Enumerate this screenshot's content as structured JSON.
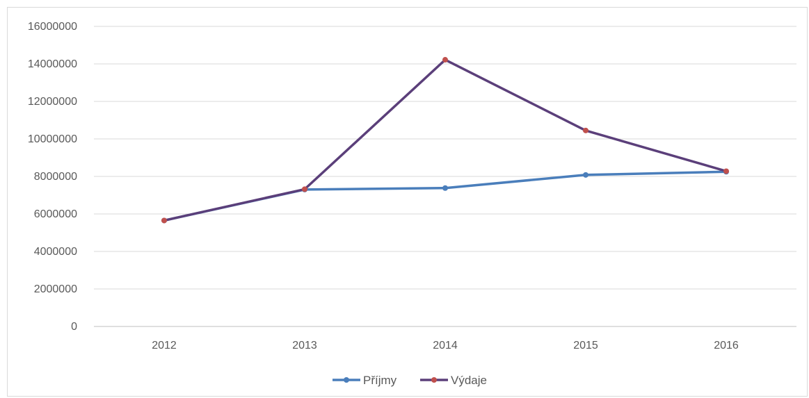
{
  "chart_data": {
    "type": "line",
    "categories": [
      "2012",
      "2013",
      "2014",
      "2015",
      "2016"
    ],
    "series": [
      {
        "name": "Příjmy",
        "values": [
          5650000,
          7300000,
          7380000,
          8080000,
          8250000
        ],
        "line_color": "#4a7ebb",
        "marker_color": "#4a7ebb"
      },
      {
        "name": "Výdaje",
        "values": [
          5650000,
          7320000,
          14220000,
          10450000,
          8280000
        ],
        "line_color": "#5b3f7a",
        "marker_color": "#c0504d"
      }
    ],
    "yticks": [
      "0",
      "2000000",
      "4000000",
      "6000000",
      "8000000",
      "10000000",
      "12000000",
      "14000000",
      "16000000"
    ],
    "ylim": [
      0,
      16000000
    ],
    "grid": true,
    "legend_position": "bottom",
    "title": "",
    "xlabel": "",
    "ylabel": ""
  }
}
